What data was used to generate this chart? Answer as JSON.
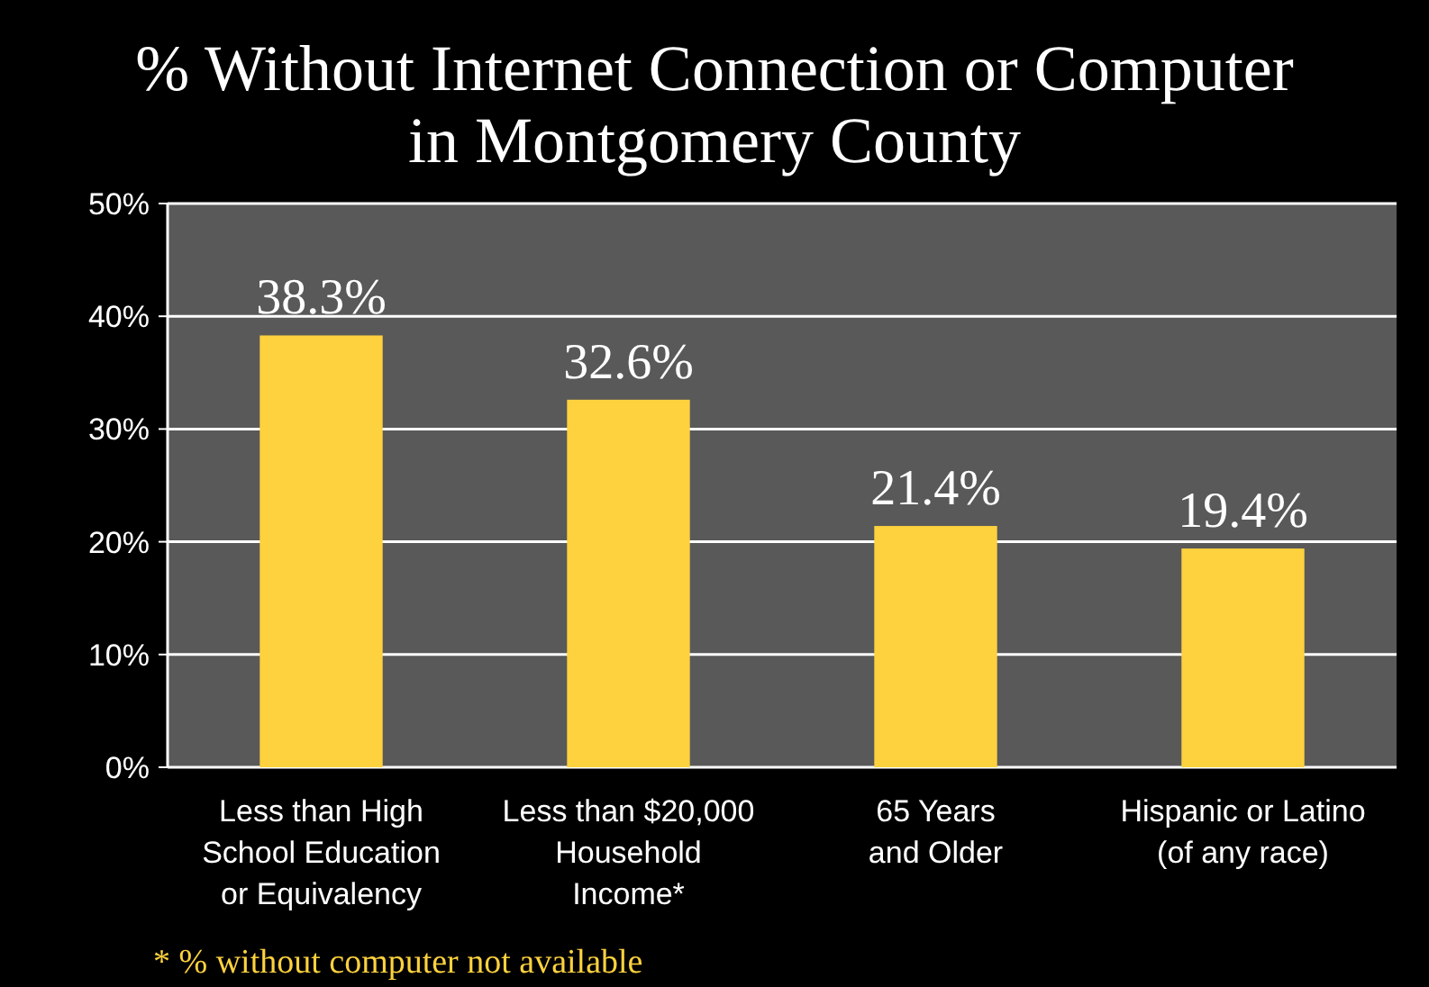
{
  "chart_data": {
    "type": "bar",
    "title": "% Without Internet Connection or Computer\nin Montgomery County",
    "categories": [
      "Less than High\nSchool Education\nor Equivalency",
      "Less than $20,000\nHousehold\nIncome*",
      "65 Years\nand Older",
      "Hispanic or Latino\n(of any race)"
    ],
    "values": [
      38.3,
      32.6,
      21.4,
      19.4
    ],
    "value_labels": [
      "38.3%",
      "32.6%",
      "21.4%",
      "19.4%"
    ],
    "color": "#fdd23e",
    "ylim": [
      0,
      50
    ],
    "yticks": [
      {
        "value": 0,
        "label": "0%"
      },
      {
        "value": 10,
        "label": "10%"
      },
      {
        "value": 20,
        "label": "20%"
      },
      {
        "value": 30,
        "label": "30%"
      },
      {
        "value": 40,
        "label": "40%"
      },
      {
        "value": 50,
        "label": "50%"
      }
    ],
    "grid": "y",
    "annotations": [
      "* % without computer not available"
    ]
  }
}
